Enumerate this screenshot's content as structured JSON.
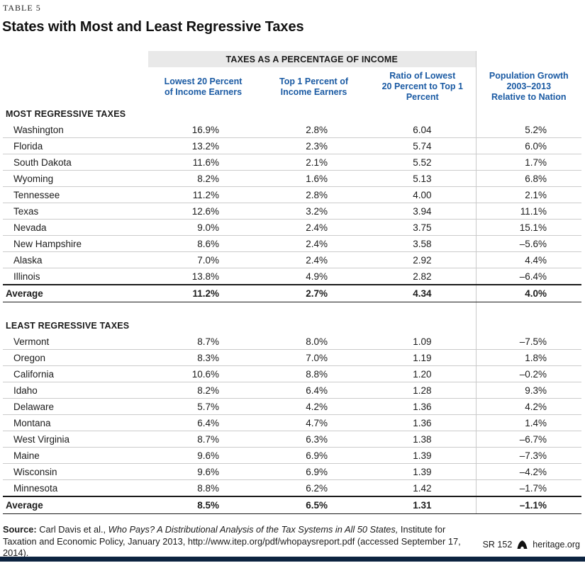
{
  "table_label": "TABLE 5",
  "title": "States with Most and Least Regressive Taxes",
  "band_header": "TAXES AS A PERCENTAGE OF INCOME",
  "columns": [
    {
      "lines": [
        "Lowest 20 Percent",
        "of Income Earners"
      ]
    },
    {
      "lines": [
        "Top 1 Percent of",
        "Income Earners"
      ]
    },
    {
      "lines": [
        "Ratio of Lowest",
        "20 Percent to Top 1",
        "Percent"
      ]
    },
    {
      "lines": [
        "Population Growth",
        "2003–2013",
        "Relative to Nation"
      ]
    }
  ],
  "sections": [
    {
      "header": "MOST REGRESSIVE TAXES",
      "rows": [
        [
          "Washington",
          "16.9%",
          "2.8%",
          "6.04",
          "5.2%"
        ],
        [
          "Florida",
          "13.2%",
          "2.3%",
          "5.74",
          "6.0%"
        ],
        [
          "South Dakota",
          "11.6%",
          "2.1%",
          "5.52",
          "1.7%"
        ],
        [
          "Wyoming",
          "8.2%",
          "1.6%",
          "5.13",
          "6.8%"
        ],
        [
          "Tennessee",
          "11.2%",
          "2.8%",
          "4.00",
          "2.1%"
        ],
        [
          "Texas",
          "12.6%",
          "3.2%",
          "3.94",
          "11.1%"
        ],
        [
          "Nevada",
          "9.0%",
          "2.4%",
          "3.75",
          "15.1%"
        ],
        [
          "New Hampshire",
          "8.6%",
          "2.4%",
          "3.58",
          "–5.6%"
        ],
        [
          "Alaska",
          "7.0%",
          "2.4%",
          "2.92",
          "4.4%"
        ],
        [
          "Illinois",
          "13.8%",
          "4.9%",
          "2.82",
          "–6.4%"
        ]
      ],
      "average": [
        "Average",
        "11.2%",
        "2.7%",
        "4.34",
        "4.0%"
      ]
    },
    {
      "header": "LEAST REGRESSIVE TAXES",
      "rows": [
        [
          "Vermont",
          "8.7%",
          "8.0%",
          "1.09",
          "–7.5%"
        ],
        [
          "Oregon",
          "8.3%",
          "7.0%",
          "1.19",
          "1.8%"
        ],
        [
          "California",
          "10.6%",
          "8.8%",
          "1.20",
          "–0.2%"
        ],
        [
          "Idaho",
          "8.2%",
          "6.4%",
          "1.28",
          "9.3%"
        ],
        [
          "Delaware",
          "5.7%",
          "4.2%",
          "1.36",
          "4.2%"
        ],
        [
          "Montana",
          "6.4%",
          "4.7%",
          "1.36",
          "1.4%"
        ],
        [
          "West Virginia",
          "8.7%",
          "6.3%",
          "1.38",
          "–6.7%"
        ],
        [
          "Maine",
          "9.6%",
          "6.9%",
          "1.39",
          "–7.3%"
        ],
        [
          "Wisconsin",
          "9.6%",
          "6.9%",
          "1.39",
          "–4.2%"
        ],
        [
          "Minnesota",
          "8.8%",
          "6.2%",
          "1.42",
          "–1.7%"
        ]
      ],
      "average": [
        "Average",
        "8.5%",
        "6.5%",
        "1.31",
        "–1.1%"
      ]
    }
  ],
  "source": {
    "label": "Source:",
    "pre": " Carl Davis et al., ",
    "italic": "Who Pays? A Distributional Analysis of the Tax Systems in All 50 States,",
    "post": " Institute for Taxation and Economic Policy, January 2013, http://www.itep.org/pdf/whopaysreport.pdf (accessed September 17, 2014)."
  },
  "footer": {
    "report_id": "SR 152",
    "site": "heritage.org"
  },
  "colors": {
    "header_blue": "#1a5aa3",
    "band_gray": "#e9e9e9",
    "row_line": "#cbcbcb",
    "bottom_bar": "#0c2340"
  }
}
